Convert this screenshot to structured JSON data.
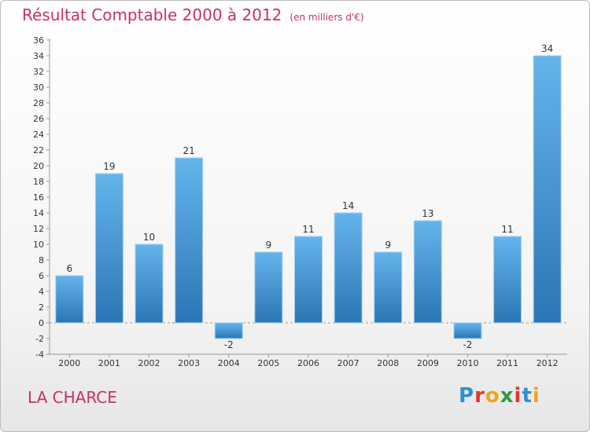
{
  "header": {
    "title": "Résultat Comptable 2000 à 2012",
    "subtitle": "(en milliers d'€)"
  },
  "footer": {
    "commune": "LA CHARCE",
    "logo_letters": [
      "P",
      "r",
      "o",
      "x",
      "i",
      "t",
      "i"
    ],
    "logo_colors": [
      "#2f8fd0",
      "#e8342b",
      "#f2a31c",
      "#2b9a3f",
      "#e8342b",
      "#2f8fd0",
      "#f2a31c"
    ]
  },
  "colors": {
    "title": "#c8325a",
    "bar_light": "#63b1ea",
    "bar_dark": "#2b78b6",
    "grid": "#9a9a9a"
  },
  "chart_data": {
    "type": "bar",
    "title": "Résultat Comptable 2000 à 2012",
    "subtitle": "(en milliers d'€)",
    "categories": [
      "2000",
      "2001",
      "2002",
      "2003",
      "2004",
      "2005",
      "2006",
      "2007",
      "2008",
      "2009",
      "2010",
      "2011",
      "2012"
    ],
    "values": [
      6,
      19,
      10,
      21,
      -2,
      9,
      11,
      14,
      9,
      13,
      -2,
      11,
      34
    ],
    "labels": [
      "6",
      "19",
      "10",
      "21",
      "-2",
      "9",
      "11",
      "14",
      "9",
      "13",
      "-2",
      "11",
      "34"
    ],
    "yticks": [
      -4,
      -2,
      0,
      2,
      4,
      6,
      8,
      10,
      12,
      14,
      16,
      18,
      20,
      22,
      24,
      26,
      28,
      30,
      32,
      34,
      36
    ],
    "ylim": [
      -4,
      36
    ],
    "xlabel": "",
    "ylabel": "",
    "grid": false
  }
}
